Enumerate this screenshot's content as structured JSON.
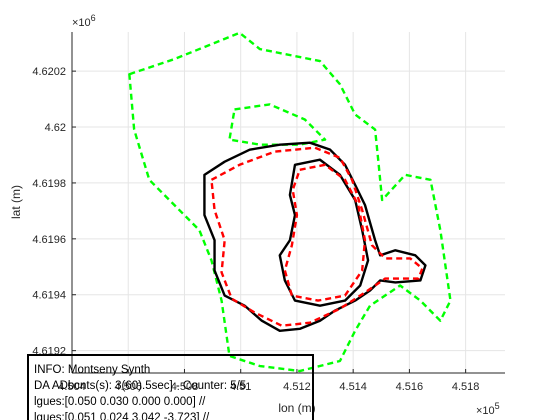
{
  "chart_data": {
    "type": "line",
    "xlabel": "lon (m)",
    "ylabel": "lat (m)",
    "x_multiplier": {
      "base": "×10",
      "exponent": "5"
    },
    "y_multiplier": {
      "base": "×10",
      "exponent": "6"
    },
    "xlim": [
      4.504,
      4.5194
    ],
    "ylim": [
      4.61912,
      4.62034
    ],
    "xticks": [
      4.504,
      4.506,
      4.508,
      4.51,
      4.512,
      4.514,
      4.516,
      4.518
    ],
    "yticks": [
      4.6192,
      4.6194,
      4.6196,
      4.6198,
      4.62,
      4.6202
    ],
    "grid": true,
    "series": [
      {
        "color": "#00ff00",
        "dashed": true,
        "x": [
          4.50604,
          4.50764,
          4.50996,
          4.51068,
          4.51282,
          4.51353,
          4.51407,
          4.51478,
          4.51489,
          4.51503,
          4.51585,
          4.51675,
          4.5171,
          4.51746,
          4.5171,
          4.51639,
          4.51567,
          4.5146,
          4.51407,
          4.51353,
          4.5121,
          4.51068,
          4.5096,
          4.50932,
          4.50896,
          4.50853,
          4.50764,
          4.50675,
          4.50621
        ],
        "y": [
          4.620189,
          4.620243,
          4.620337,
          4.620279,
          4.620236,
          4.620153,
          4.620045,
          4.619991,
          4.619883,
          4.619739,
          4.619829,
          4.619811,
          4.619631,
          4.619379,
          4.619307,
          4.619379,
          4.619433,
          4.619361,
          4.619271,
          4.619163,
          4.619127,
          4.619145,
          4.619181,
          4.619379,
          4.619523,
          4.619631,
          4.619721,
          4.619811,
          4.619991
        ]
      },
      {
        "color": "#00ff00",
        "dashed": true,
        "x": [
          4.50978,
          4.51103,
          4.51228,
          4.513,
          4.5121,
          4.51068,
          4.5096
        ],
        "y": [
          4.620063,
          4.620081,
          4.620027,
          4.619955,
          4.619937,
          4.619937,
          4.619955
        ]
      },
      {
        "color": "#000000",
        "dashed": false,
        "x": [
          4.50871,
          4.50943,
          4.51032,
          4.51139,
          4.51246,
          4.51318,
          4.51371,
          4.51407,
          4.51442,
          4.51478,
          4.51496,
          4.5155,
          4.51621,
          4.51657,
          4.51639,
          4.5155,
          4.51496,
          4.5146,
          4.51407,
          4.51335,
          4.51282,
          4.5121,
          4.51139,
          4.51075,
          4.51014,
          4.50943,
          4.50907,
          4.50907,
          4.50871,
          4.50871
        ],
        "y": [
          4.619829,
          4.619876,
          4.619919,
          4.619937,
          4.619944,
          4.619919,
          4.619865,
          4.619793,
          4.619721,
          4.619595,
          4.619541,
          4.619559,
          4.619541,
          4.619505,
          4.619451,
          4.619444,
          4.619451,
          4.619415,
          4.619379,
          4.619343,
          4.619307,
          4.619278,
          4.619271,
          4.619307,
          4.619361,
          4.619397,
          4.619487,
          4.619595,
          4.619685,
          4.619757
        ]
      },
      {
        "color": "#000000",
        "dashed": false,
        "x": [
          4.51193,
          4.51282,
          4.51353,
          4.51407,
          4.51432,
          4.51453,
          4.51425,
          4.51371,
          4.51282,
          4.51193,
          4.51157,
          4.51139,
          4.51175,
          4.51193,
          4.51175
        ],
        "y": [
          4.619865,
          4.619883,
          4.619829,
          4.619739,
          4.619631,
          4.619523,
          4.619433,
          4.619379,
          4.619361,
          4.619379,
          4.619451,
          4.619541,
          4.619595,
          4.619685,
          4.619757
        ]
      },
      {
        "color": "#ff0000",
        "dashed": true,
        "x": [
          4.50896,
          4.50996,
          4.51121,
          4.51264,
          4.51353,
          4.51396,
          4.51432,
          4.51467,
          4.51514,
          4.51603,
          4.51646,
          4.51632,
          4.51514,
          4.51442,
          4.51353,
          4.51246,
          4.51146,
          4.5105,
          4.50968,
          4.50932,
          4.50943,
          4.50907
        ],
        "y": [
          4.619811,
          4.619865,
          4.619912,
          4.619926,
          4.61989,
          4.619811,
          4.619703,
          4.619577,
          4.61953,
          4.61953,
          4.619494,
          4.619458,
          4.619458,
          4.619408,
          4.61935,
          4.6193,
          4.619289,
          4.619336,
          4.619386,
          4.61948,
          4.619595,
          4.619703
        ]
      },
      {
        "color": "#ff0000",
        "dashed": true,
        "x": [
          4.5121,
          4.513,
          4.51371,
          4.51418,
          4.51442,
          4.51432,
          4.51371,
          4.51275,
          4.51182,
          4.51157,
          4.51182,
          4.512,
          4.51185
        ],
        "y": [
          4.619847,
          4.619865,
          4.619811,
          4.619721,
          4.619595,
          4.619487,
          4.619397,
          4.619379,
          4.619397,
          4.619487,
          4.619577,
          4.619685,
          4.619775
        ]
      }
    ],
    "info_lines": [
      "INFO: Montseny Synth",
      "DA ADbcnts(s): 3(60).5sec] - Counter: 5/5",
      "lgues:[0.050 0.030 0.000 0.000] //",
      "lgues:[0.051 0.024 3.042 -3.723] //"
    ]
  }
}
